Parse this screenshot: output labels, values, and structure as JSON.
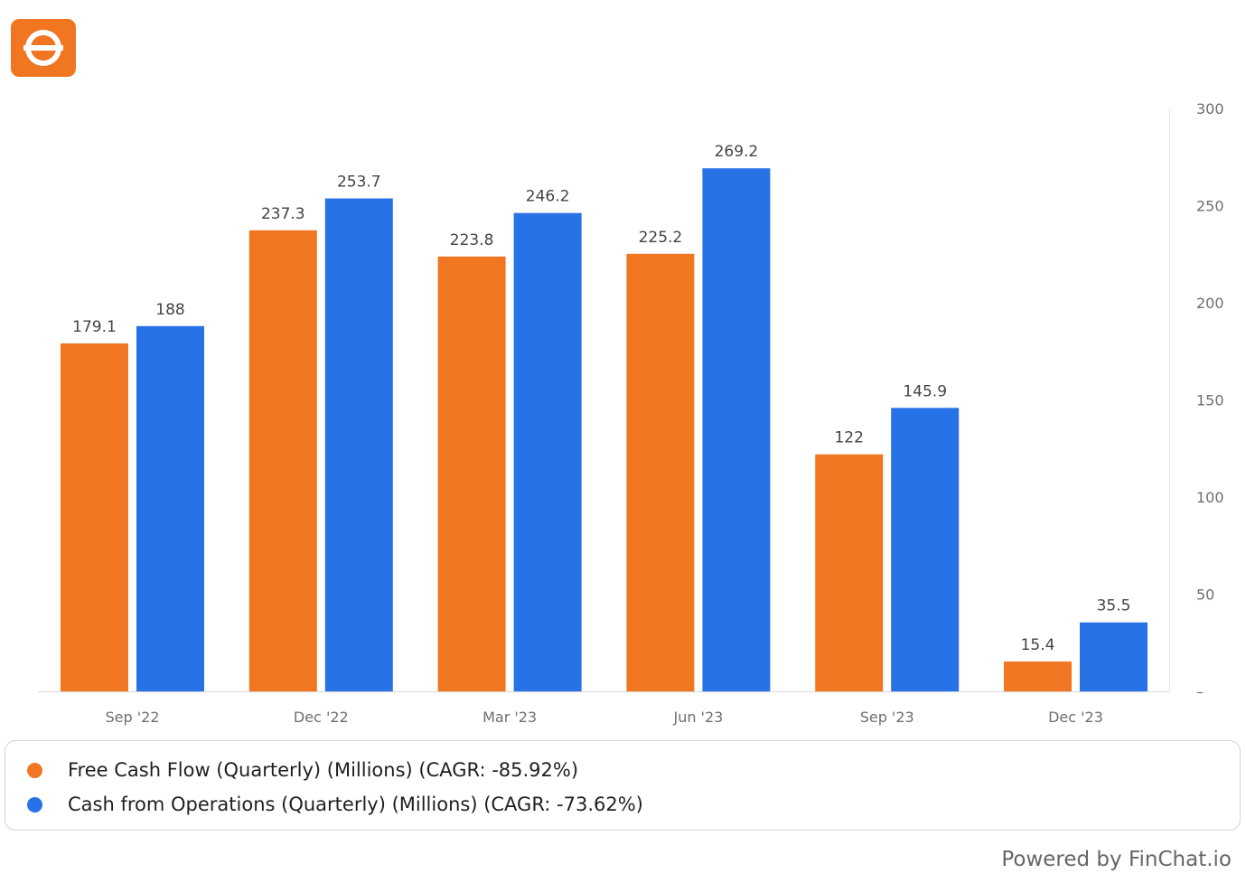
{
  "brand": {
    "logo_icon": "finchat-e-logo-icon",
    "logo_color": "#f07622"
  },
  "chart_data": {
    "type": "bar",
    "categories": [
      "Sep '22",
      "Dec '22",
      "Mar '23",
      "Jun '23",
      "Sep '23",
      "Dec '23"
    ],
    "series": [
      {
        "name": "Free Cash Flow (Quarterly) (Millions) (CAGR: -85.92%)",
        "values": [
          179.1,
          237.3,
          223.8,
          225.2,
          122,
          15.4
        ],
        "labels": [
          "179.1",
          "237.3",
          "223.8",
          "225.2",
          "122",
          "15.4"
        ],
        "color": "#f07622"
      },
      {
        "name": "Cash from Operations (Quarterly) (Millions) (CAGR: -73.62%)",
        "values": [
          188,
          253.7,
          246.2,
          269.2,
          145.9,
          35.5
        ],
        "labels": [
          "188",
          "253.7",
          "246.2",
          "269.2",
          "145.9",
          "35.5"
        ],
        "color": "#2872e8"
      }
    ],
    "ylim": [
      0,
      300
    ],
    "yticks": [
      0,
      50,
      100,
      150,
      200,
      250,
      300
    ],
    "ytick_labels": [
      "–",
      "50",
      "100",
      "150",
      "200",
      "250",
      "300"
    ],
    "yaxis_side": "right",
    "grid": false,
    "legend_position": "bottom"
  },
  "footer": {
    "text": "Powered by FinChat.io"
  }
}
